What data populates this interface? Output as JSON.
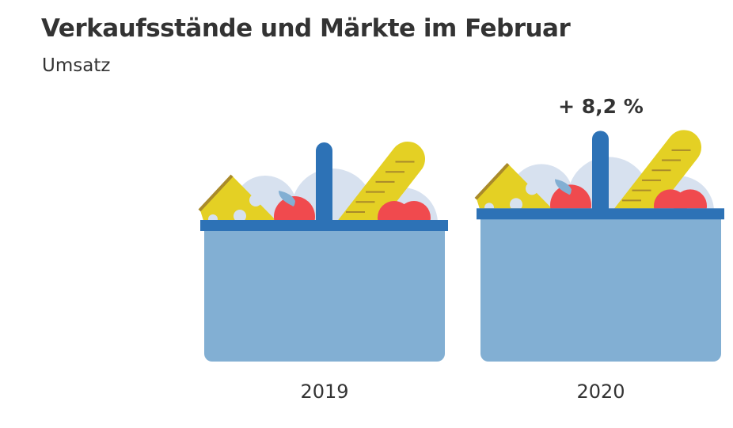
{
  "title": "Verkaufsstände und Märkte im Februar",
  "subtitle": "Umsatz",
  "chart_data": {
    "type": "pictogram",
    "categories": [
      "2019",
      "2020"
    ],
    "values_relative": [
      100,
      108.2
    ],
    "annotations": [
      {
        "category": "2020",
        "text": "+ 8,2 %"
      }
    ],
    "colors": {
      "basket_body": "#82afd3",
      "basket_rim": "#2d72b6",
      "cheese": "#e4d024",
      "cheese_rind": "#a98a2a",
      "apple": "#f04a4e",
      "leaf": "#82afd3",
      "plate": "#d7e1ef",
      "text": "#333333"
    }
  }
}
